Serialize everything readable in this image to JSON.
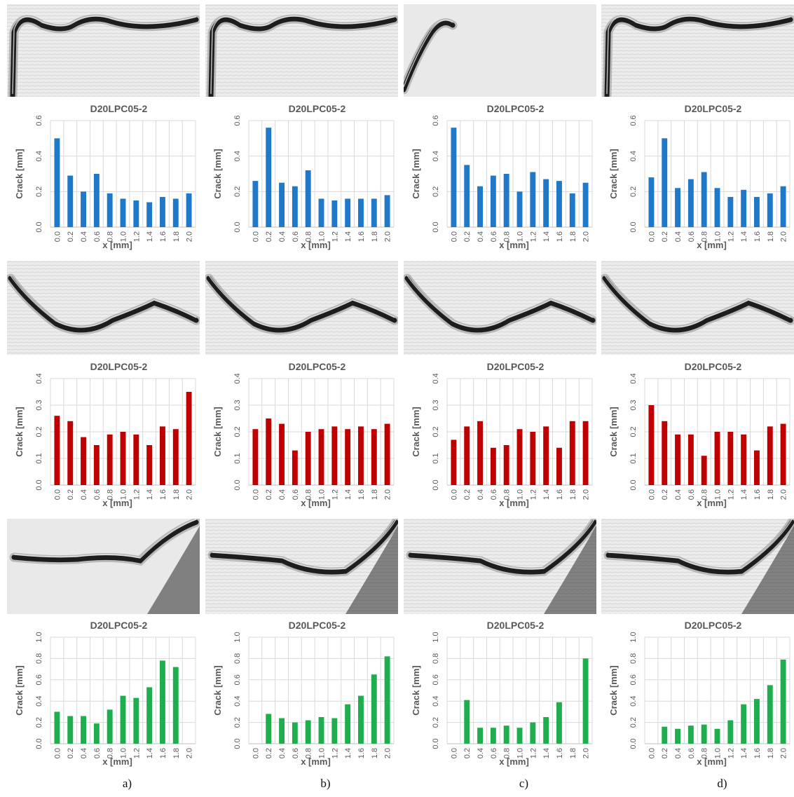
{
  "chart_data": [
    {
      "type": "bar",
      "title": "D20LPC05-2",
      "xlabel": "x [mm]",
      "ylabel": "Crack [mm]",
      "ylim": [
        0,
        0.6
      ],
      "yticks": [
        "0.0",
        "0.2",
        "0.4",
        "0.6"
      ],
      "categories": [
        "0.0",
        "0.2",
        "0.4",
        "0.6",
        "0.8",
        "1.0",
        "1.2",
        "1.4",
        "1.6",
        "1.8",
        "2.0"
      ],
      "values": [
        0.5,
        0.29,
        0.2,
        0.3,
        0.19,
        0.16,
        0.15,
        0.14,
        0.17,
        0.16,
        0.19
      ],
      "color": "#1f78c8",
      "grid": true
    },
    {
      "type": "bar",
      "title": "D20LPC05-2",
      "xlabel": "x [mm]",
      "ylabel": "Crack [mm]",
      "ylim": [
        0,
        0.6
      ],
      "yticks": [
        "0.0",
        "0.2",
        "0.4",
        "0.6"
      ],
      "categories": [
        "0.0",
        "0.2",
        "0.4",
        "0.6",
        "0.8",
        "1.0",
        "1.2",
        "1.4",
        "1.6",
        "1.8",
        "2.0"
      ],
      "values": [
        0.26,
        0.56,
        0.25,
        0.23,
        0.32,
        0.16,
        0.15,
        0.16,
        0.16,
        0.16,
        0.18
      ],
      "color": "#1f78c8",
      "grid": true
    },
    {
      "type": "bar",
      "title": "D20LPC05-2",
      "xlabel": "x [mm]",
      "ylabel": "Crack [mm]",
      "ylim": [
        0,
        0.6
      ],
      "yticks": [
        "0.0",
        "0.2",
        "0.4",
        "0.6"
      ],
      "categories": [
        "0.0",
        "0.2",
        "0.4",
        "0.6",
        "0.8",
        "1.0",
        "1.2",
        "1.4",
        "1.6",
        "1.8",
        "2.0"
      ],
      "values": [
        0.56,
        0.35,
        0.23,
        0.29,
        0.3,
        0.2,
        0.31,
        0.27,
        0.26,
        0.19,
        0.25
      ],
      "color": "#1f78c8",
      "grid": true
    },
    {
      "type": "bar",
      "title": "D20LPC05-2",
      "xlabel": "x [mm]",
      "ylabel": "Crack [mm]",
      "ylim": [
        0,
        0.6
      ],
      "yticks": [
        "0.0",
        "0.2",
        "0.4",
        "0.6"
      ],
      "categories": [
        "0.0",
        "0.2",
        "0.4",
        "0.6",
        "0.8",
        "1.0",
        "1.2",
        "1.4",
        "1.6",
        "1.8",
        "2.0"
      ],
      "values": [
        0.28,
        0.5,
        0.22,
        0.27,
        0.31,
        0.22,
        0.17,
        0.21,
        0.17,
        0.19,
        0.23
      ],
      "color": "#1f78c8",
      "grid": true
    },
    {
      "type": "bar",
      "title": "D20LPC05-2",
      "xlabel": "x [mm]",
      "ylabel": "Crack [mm]",
      "ylim": [
        0,
        0.4
      ],
      "yticks": [
        "0.0",
        "0.1",
        "0.2",
        "0.3",
        "0.4"
      ],
      "categories": [
        "0.0",
        "0.2",
        "0.4",
        "0.6",
        "0.8",
        "1.0",
        "1.2",
        "1.4",
        "1.6",
        "1.8",
        "2.0"
      ],
      "values": [
        0.26,
        0.24,
        0.18,
        0.15,
        0.19,
        0.2,
        0.19,
        0.15,
        0.22,
        0.21,
        0.35
      ],
      "color": "#c00000",
      "grid": true
    },
    {
      "type": "bar",
      "title": "D20LPC05-2",
      "xlabel": "x [mm]",
      "ylabel": "Crack [mm]",
      "ylim": [
        0,
        0.4
      ],
      "yticks": [
        "0.0",
        "0.1",
        "0.2",
        "0.3",
        "0.4"
      ],
      "categories": [
        "0.0",
        "0.2",
        "0.4",
        "0.6",
        "0.8",
        "1.0",
        "1.2",
        "1.4",
        "1.6",
        "1.8",
        "2.0"
      ],
      "values": [
        0.21,
        0.25,
        0.23,
        0.13,
        0.2,
        0.21,
        0.22,
        0.21,
        0.22,
        0.21,
        0.23
      ],
      "color": "#c00000",
      "grid": true
    },
    {
      "type": "bar",
      "title": "D20LPC05-2",
      "xlabel": "x [mm]",
      "ylabel": "Crack [mm]",
      "ylim": [
        0,
        0.4
      ],
      "yticks": [
        "0.0",
        "0.1",
        "0.2",
        "0.3",
        "0.4"
      ],
      "categories": [
        "0.0",
        "0.2",
        "0.4",
        "0.6",
        "0.8",
        "1.0",
        "1.2",
        "1.4",
        "1.6",
        "1.8",
        "2.0"
      ],
      "values": [
        0.17,
        0.22,
        0.24,
        0.14,
        0.15,
        0.21,
        0.2,
        0.22,
        0.14,
        0.24,
        0.24
      ],
      "color": "#c00000",
      "grid": true
    },
    {
      "type": "bar",
      "title": "D20LPC05-2",
      "xlabel": "x [mm]",
      "ylabel": "Crack [mm]",
      "ylim": [
        0,
        0.4
      ],
      "yticks": [
        "0.0",
        "0.1",
        "0.2",
        "0.3",
        "0.4"
      ],
      "categories": [
        "0.0",
        "0.2",
        "0.4",
        "0.6",
        "0.8",
        "1.0",
        "1.2",
        "1.4",
        "1.6",
        "1.8",
        "2.0"
      ],
      "values": [
        0.3,
        0.24,
        0.19,
        0.19,
        0.11,
        0.2,
        0.2,
        0.19,
        0.13,
        0.22,
        0.23
      ],
      "color": "#c00000",
      "grid": true
    },
    {
      "type": "bar",
      "title": "D20LPC05-2",
      "xlabel": "x [mm]",
      "ylabel": "Crack [mm]",
      "ylim": [
        0,
        1.0
      ],
      "yticks": [
        "0.0",
        "0.2",
        "0.4",
        "0.6",
        "0.8",
        "1.0"
      ],
      "categories": [
        "0.0",
        "0.2",
        "0.4",
        "0.6",
        "0.8",
        "1.0",
        "1.2",
        "1.4",
        "1.6",
        "1.8",
        "2.0"
      ],
      "values": [
        0.3,
        0.26,
        0.26,
        0.19,
        0.32,
        0.45,
        0.43,
        0.53,
        0.78,
        0.72,
        0
      ],
      "color": "#1fae4e",
      "grid": true
    },
    {
      "type": "bar",
      "title": "D20LPC05-2",
      "xlabel": "x [mm]",
      "ylabel": "Crack [mm]",
      "ylim": [
        0,
        1.0
      ],
      "yticks": [
        "0.0",
        "0.2",
        "0.4",
        "0.6",
        "0.8",
        "1.0"
      ],
      "categories": [
        "0.0",
        "0.2",
        "0.4",
        "0.6",
        "0.8",
        "1.0",
        "1.2",
        "1.4",
        "1.6",
        "1.8",
        "2.0"
      ],
      "values": [
        0,
        0.28,
        0.24,
        0.2,
        0.22,
        0.25,
        0.24,
        0.37,
        0.45,
        0.65,
        0.82
      ],
      "color": "#1fae4e",
      "grid": true
    },
    {
      "type": "bar",
      "title": "D20LPC05-2",
      "xlabel": "x [mm]",
      "ylabel": "Crack [mm]",
      "ylim": [
        0,
        1.0
      ],
      "yticks": [
        "0.0",
        "0.2",
        "0.4",
        "0.6",
        "0.8",
        "1.0"
      ],
      "categories": [
        "0.0",
        "0.2",
        "0.4",
        "0.6",
        "0.8",
        "1.0",
        "1.2",
        "1.4",
        "1.6",
        "1.8",
        "2.0"
      ],
      "values": [
        0,
        0.41,
        0.15,
        0.15,
        0.17,
        0.15,
        0.2,
        0.25,
        0.39,
        0,
        0.8
      ],
      "color": "#1fae4e",
      "grid": true
    },
    {
      "type": "bar",
      "title": "D20LPC05-2",
      "xlabel": "x [mm]",
      "ylabel": "Crack [mm]",
      "ylim": [
        0,
        1.0
      ],
      "yticks": [
        "0.0",
        "0.2",
        "0.4",
        "0.6",
        "0.8",
        "1.0"
      ],
      "categories": [
        "0.0",
        "0.2",
        "0.4",
        "0.6",
        "0.8",
        "1.0",
        "1.2",
        "1.4",
        "1.6",
        "1.8",
        "2.0"
      ],
      "values": [
        0,
        0.16,
        0.14,
        0.17,
        0.18,
        0.14,
        0.22,
        0.37,
        0.42,
        0.55,
        0.79
      ],
      "color": "#1fae4e",
      "grid": true
    }
  ],
  "column_labels": [
    "a)",
    "b)",
    "c)",
    "d)"
  ],
  "crack_images": [
    {
      "row": 0,
      "col": 0,
      "crack": "upper-left-dark"
    },
    {
      "row": 0,
      "col": 1,
      "crack": "upper-left-dark"
    },
    {
      "row": 0,
      "col": 2,
      "crack": "left-edge-smooth"
    },
    {
      "row": 0,
      "col": 3,
      "crack": "upper-left-dark"
    },
    {
      "row": 1,
      "col": 0,
      "crack": "wave"
    },
    {
      "row": 1,
      "col": 1,
      "crack": "wave"
    },
    {
      "row": 1,
      "col": 2,
      "crack": "wave"
    },
    {
      "row": 1,
      "col": 3,
      "crack": "wave"
    },
    {
      "row": 2,
      "col": 0,
      "crack": "right-hook-smooth"
    },
    {
      "row": 2,
      "col": 1,
      "crack": "right-hook"
    },
    {
      "row": 2,
      "col": 2,
      "crack": "right-hook"
    },
    {
      "row": 2,
      "col": 3,
      "crack": "right-hook"
    }
  ]
}
